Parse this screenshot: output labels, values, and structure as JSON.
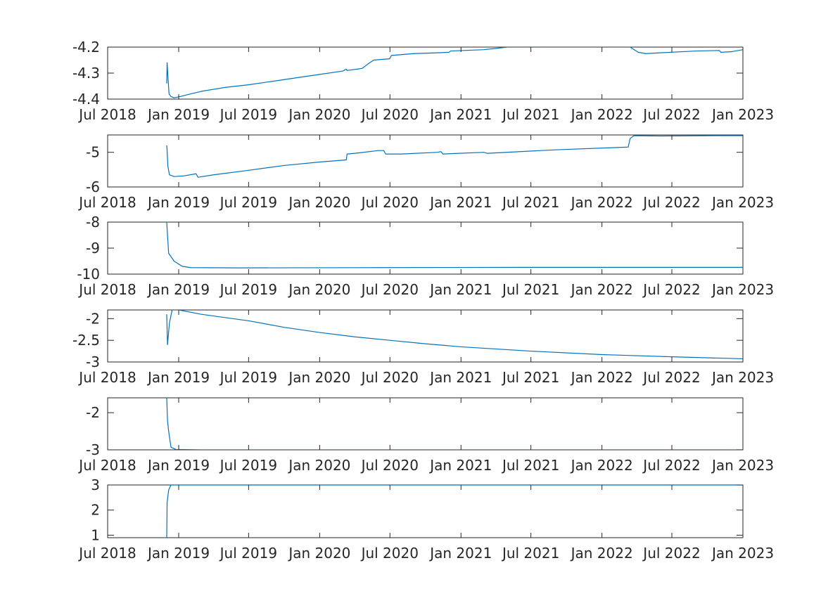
{
  "colors": {
    "line": "#0072BD",
    "axis": "#262626",
    "background": "#ffffff"
  },
  "chart_data": [
    {
      "type": "line",
      "xlim": [
        "2018-07-01",
        "2023-01-01"
      ],
      "ylim": [
        -4.4,
        -4.2
      ],
      "xticks": [
        {
          "date": "2018-07-01",
          "label": "Jul 2018"
        },
        {
          "date": "2019-01-01",
          "label": "Jan 2019"
        },
        {
          "date": "2019-07-01",
          "label": "Jul 2019"
        },
        {
          "date": "2020-01-01",
          "label": "Jan 2020"
        },
        {
          "date": "2020-07-01",
          "label": "Jul 2020"
        },
        {
          "date": "2021-01-01",
          "label": "Jan 2021"
        },
        {
          "date": "2021-07-01",
          "label": "Jul 2021"
        },
        {
          "date": "2022-01-01",
          "label": "Jan 2022"
        },
        {
          "date": "2022-07-01",
          "label": "Jul 2022"
        },
        {
          "date": "2023-01-01",
          "label": "Jan 2023"
        }
      ],
      "yticks": [
        {
          "value": -4.4,
          "label": "-4.4"
        },
        {
          "value": -4.3,
          "label": "-4.3"
        },
        {
          "value": -4.2,
          "label": "-4.2"
        }
      ],
      "series": [
        {
          "points": [
            [
              "2018-12-01",
              -4.34
            ],
            [
              "2018-12-02",
              -4.26
            ],
            [
              "2018-12-04",
              -4.31
            ],
            [
              "2018-12-07",
              -4.38
            ],
            [
              "2018-12-12",
              -4.39
            ],
            [
              "2018-12-20",
              -4.395
            ],
            [
              "2019-01-05",
              -4.39
            ],
            [
              "2019-02-01",
              -4.38
            ],
            [
              "2019-03-01",
              -4.37
            ],
            [
              "2019-05-01",
              -4.355
            ],
            [
              "2019-07-01",
              -4.345
            ],
            [
              "2019-10-01",
              -4.325
            ],
            [
              "2020-01-01",
              -4.305
            ],
            [
              "2020-03-01",
              -4.292
            ],
            [
              "2020-03-10",
              -4.285
            ],
            [
              "2020-03-12",
              -4.29
            ],
            [
              "2020-04-20",
              -4.282
            ],
            [
              "2020-05-05",
              -4.265
            ],
            [
              "2020-05-20",
              -4.25
            ],
            [
              "2020-06-30",
              -4.245
            ],
            [
              "2020-07-05",
              -4.232
            ],
            [
              "2020-09-01",
              -4.225
            ],
            [
              "2020-11-01",
              -4.222
            ],
            [
              "2020-12-01",
              -4.22
            ],
            [
              "2020-12-05",
              -4.215
            ],
            [
              "2021-03-01",
              -4.21
            ],
            [
              "2021-04-01",
              -4.205
            ],
            [
              "2021-05-01",
              -4.2
            ],
            [
              "2021-09-01",
              -4.2
            ],
            [
              "2022-03-15",
              -4.2
            ],
            [
              "2022-04-05",
              -4.22
            ],
            [
              "2022-04-25",
              -4.225
            ],
            [
              "2022-06-01",
              -4.222
            ],
            [
              "2022-09-01",
              -4.215
            ],
            [
              "2022-11-01",
              -4.213
            ],
            [
              "2022-11-05",
              -4.22
            ],
            [
              "2022-12-01",
              -4.218
            ],
            [
              "2023-01-01",
              -4.21
            ],
            [
              "2023-01-15",
              -4.208
            ]
          ]
        }
      ]
    },
    {
      "type": "line",
      "xlim": [
        "2018-07-01",
        "2023-01-01"
      ],
      "ylim": [
        -6,
        -4.5
      ],
      "xticks": [
        {
          "date": "2018-07-01",
          "label": "Jul 2018"
        },
        {
          "date": "2019-01-01",
          "label": "Jan 2019"
        },
        {
          "date": "2019-07-01",
          "label": "Jul 2019"
        },
        {
          "date": "2020-01-01",
          "label": "Jan 2020"
        },
        {
          "date": "2020-07-01",
          "label": "Jul 2020"
        },
        {
          "date": "2021-01-01",
          "label": "Jan 2021"
        },
        {
          "date": "2021-07-01",
          "label": "Jul 2021"
        },
        {
          "date": "2022-01-01",
          "label": "Jan 2022"
        },
        {
          "date": "2022-07-01",
          "label": "Jul 2022"
        },
        {
          "date": "2023-01-01",
          "label": "Jan 2023"
        }
      ],
      "yticks": [
        {
          "value": -6,
          "label": "-6"
        },
        {
          "value": -5,
          "label": "-5"
        }
      ],
      "series": [
        {
          "points": [
            [
              "2018-12-01",
              -4.8
            ],
            [
              "2018-12-02",
              -4.95
            ],
            [
              "2018-12-04",
              -5.4
            ],
            [
              "2018-12-08",
              -5.65
            ],
            [
              "2018-12-20",
              -5.7
            ],
            [
              "2019-01-15",
              -5.68
            ],
            [
              "2019-02-15",
              -5.62
            ],
            [
              "2019-02-20",
              -5.72
            ],
            [
              "2019-04-01",
              -5.65
            ],
            [
              "2019-07-01",
              -5.52
            ],
            [
              "2019-10-01",
              -5.38
            ],
            [
              "2020-01-01",
              -5.28
            ],
            [
              "2020-03-10",
              -5.22
            ],
            [
              "2020-03-12",
              -5.05
            ],
            [
              "2020-04-01",
              -5.03
            ],
            [
              "2020-06-01",
              -4.95
            ],
            [
              "2020-06-15",
              -4.95
            ],
            [
              "2020-06-20",
              -5.05
            ],
            [
              "2020-08-01",
              -5.05
            ],
            [
              "2020-11-01",
              -5.0
            ],
            [
              "2020-11-10",
              -4.98
            ],
            [
              "2020-11-15",
              -5.05
            ],
            [
              "2021-03-01",
              -5.0
            ],
            [
              "2021-03-10",
              -5.03
            ],
            [
              "2021-09-01",
              -4.93
            ],
            [
              "2022-03-10",
              -4.85
            ],
            [
              "2022-03-15",
              -4.6
            ],
            [
              "2022-03-25",
              -4.52
            ],
            [
              "2022-06-01",
              -4.53
            ],
            [
              "2022-11-01",
              -4.52
            ],
            [
              "2023-01-15",
              -4.52
            ]
          ]
        }
      ]
    },
    {
      "type": "line",
      "xlim": [
        "2018-07-01",
        "2023-01-01"
      ],
      "ylim": [
        -10,
        -8
      ],
      "xticks": [
        {
          "date": "2018-07-01",
          "label": "Jul 2018"
        },
        {
          "date": "2019-01-01",
          "label": "Jan 2019"
        },
        {
          "date": "2019-07-01",
          "label": "Jul 2019"
        },
        {
          "date": "2020-01-01",
          "label": "Jan 2020"
        },
        {
          "date": "2020-07-01",
          "label": "Jul 2020"
        },
        {
          "date": "2021-01-01",
          "label": "Jan 2021"
        },
        {
          "date": "2021-07-01",
          "label": "Jul 2021"
        },
        {
          "date": "2022-01-01",
          "label": "Jan 2022"
        },
        {
          "date": "2022-07-01",
          "label": "Jul 2022"
        },
        {
          "date": "2023-01-01",
          "label": "Jan 2023"
        }
      ],
      "yticks": [
        {
          "value": -10,
          "label": "-10"
        },
        {
          "value": -9,
          "label": "-9"
        },
        {
          "value": -8,
          "label": "-8"
        }
      ],
      "series": [
        {
          "points": [
            [
              "2018-12-01",
              -8.0
            ],
            [
              "2018-12-03",
              -8.5
            ],
            [
              "2018-12-06",
              -9.2
            ],
            [
              "2018-12-20",
              -9.5
            ],
            [
              "2019-01-10",
              -9.7
            ],
            [
              "2019-02-01",
              -9.75
            ],
            [
              "2019-06-01",
              -9.76
            ],
            [
              "2020-06-01",
              -9.75
            ],
            [
              "2021-06-01",
              -9.74
            ],
            [
              "2023-01-15",
              -9.74
            ]
          ]
        }
      ]
    },
    {
      "type": "line",
      "xlim": [
        "2018-07-01",
        "2023-01-01"
      ],
      "ylim": [
        -3,
        -1.8
      ],
      "xticks": [
        {
          "date": "2018-07-01",
          "label": "Jul 2018"
        },
        {
          "date": "2019-01-01",
          "label": "Jan 2019"
        },
        {
          "date": "2019-07-01",
          "label": "Jul 2019"
        },
        {
          "date": "2020-01-01",
          "label": "Jan 2020"
        },
        {
          "date": "2020-07-01",
          "label": "Jul 2020"
        },
        {
          "date": "2021-01-01",
          "label": "Jan 2021"
        },
        {
          "date": "2021-07-01",
          "label": "Jul 2021"
        },
        {
          "date": "2022-01-01",
          "label": "Jan 2022"
        },
        {
          "date": "2022-07-01",
          "label": "Jul 2022"
        },
        {
          "date": "2023-01-01",
          "label": "Jan 2023"
        }
      ],
      "yticks": [
        {
          "value": -3,
          "label": "-3"
        },
        {
          "value": -2.5,
          "label": "-2.5"
        },
        {
          "value": -2,
          "label": "-2"
        }
      ],
      "series": [
        {
          "points": [
            [
              "2018-12-01",
              -1.9
            ],
            [
              "2018-12-03",
              -2.6
            ],
            [
              "2018-12-08",
              -2.1
            ],
            [
              "2018-12-15",
              -1.8
            ],
            [
              "2019-01-01",
              -1.8
            ],
            [
              "2019-03-01",
              -1.9
            ],
            [
              "2019-07-01",
              -2.05
            ],
            [
              "2019-10-01",
              -2.2
            ],
            [
              "2020-01-01",
              -2.32
            ],
            [
              "2020-04-01",
              -2.42
            ],
            [
              "2020-07-01",
              -2.5
            ],
            [
              "2020-10-01",
              -2.58
            ],
            [
              "2021-01-01",
              -2.65
            ],
            [
              "2021-07-01",
              -2.75
            ],
            [
              "2022-01-01",
              -2.83
            ],
            [
              "2022-07-01",
              -2.88
            ],
            [
              "2023-01-15",
              -2.93
            ]
          ]
        }
      ]
    },
    {
      "type": "line",
      "xlim": [
        "2018-07-01",
        "2023-01-01"
      ],
      "ylim": [
        -3,
        -1.6
      ],
      "xticks": [
        {
          "date": "2018-07-01",
          "label": "Jul 2018"
        },
        {
          "date": "2019-01-01",
          "label": "Jan 2019"
        },
        {
          "date": "2019-07-01",
          "label": "Jul 2019"
        },
        {
          "date": "2020-01-01",
          "label": "Jan 2020"
        },
        {
          "date": "2020-07-01",
          "label": "Jul 2020"
        },
        {
          "date": "2021-01-01",
          "label": "Jan 2021"
        },
        {
          "date": "2021-07-01",
          "label": "Jul 2021"
        },
        {
          "date": "2022-01-01",
          "label": "Jan 2022"
        },
        {
          "date": "2022-07-01",
          "label": "Jul 2022"
        },
        {
          "date": "2023-01-01",
          "label": "Jan 2023"
        }
      ],
      "yticks": [
        {
          "value": -3,
          "label": "-3"
        },
        {
          "value": -2,
          "label": "-2"
        }
      ],
      "series": [
        {
          "points": [
            [
              "2018-12-01",
              -1.6
            ],
            [
              "2018-12-03",
              -2.2
            ],
            [
              "2018-12-06",
              -2.5
            ],
            [
              "2018-12-12",
              -2.93
            ],
            [
              "2018-12-25",
              -2.99
            ],
            [
              "2019-03-01",
              -3.0
            ],
            [
              "2023-01-15",
              -3.0
            ]
          ]
        }
      ]
    },
    {
      "type": "line",
      "xlim": [
        "2018-07-01",
        "2023-01-01"
      ],
      "ylim": [
        0.9,
        3
      ],
      "xticks": [
        {
          "date": "2018-07-01",
          "label": "Jul 2018"
        },
        {
          "date": "2019-01-01",
          "label": "Jan 2019"
        },
        {
          "date": "2019-07-01",
          "label": "Jul 2019"
        },
        {
          "date": "2020-01-01",
          "label": "Jan 2020"
        },
        {
          "date": "2020-07-01",
          "label": "Jul 2020"
        },
        {
          "date": "2021-01-01",
          "label": "Jan 2021"
        },
        {
          "date": "2021-07-01",
          "label": "Jul 2021"
        },
        {
          "date": "2022-01-01",
          "label": "Jan 2022"
        },
        {
          "date": "2022-07-01",
          "label": "Jul 2022"
        },
        {
          "date": "2023-01-01",
          "label": "Jan 2023"
        }
      ],
      "yticks": [
        {
          "value": 1,
          "label": "1"
        },
        {
          "value": 2,
          "label": "2"
        },
        {
          "value": 3,
          "label": "3"
        }
      ],
      "series": [
        {
          "points": [
            [
              "2018-12-01",
              0.9
            ],
            [
              "2018-12-02",
              2.3
            ],
            [
              "2018-12-06",
              2.8
            ],
            [
              "2018-12-12",
              3.0
            ],
            [
              "2023-01-15",
              3.0
            ]
          ]
        }
      ]
    }
  ]
}
